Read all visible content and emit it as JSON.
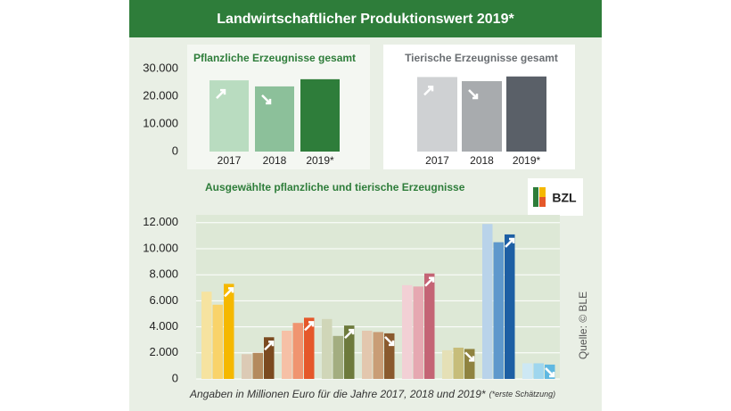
{
  "title": "Landwirtschaftlicher Produktionswert 2019*",
  "note": "Angaben in Millionen Euro für die Jahre 2017, 2018 und 2019*",
  "note_small": "(*erste Schätzung)",
  "source": "Quelle: © BLE",
  "logo": "BZL",
  "chart_data": [
    {
      "type": "bar",
      "title": "Pflanzliche Erzeugnisse gesamt",
      "categories": [
        "2017",
        "2018",
        "2019*"
      ],
      "values": [
        25800,
        23600,
        26200
      ],
      "colors": [
        "#b9dcc0",
        "#8cc09a",
        "#2e7d3a"
      ],
      "ylim": [
        0,
        31000
      ],
      "yticks": [
        0,
        {
          "value": 10000,
          "label": "10.000"
        },
        {
          "value": 20000,
          "label": "20.000"
        },
        {
          "value": 30000,
          "label": "30.000"
        }
      ]
    },
    {
      "type": "bar",
      "title": "Tierische Erzeugnisse gesamt",
      "categories": [
        "2017",
        "2018",
        "2019*"
      ],
      "values": [
        27000,
        25500,
        27200
      ],
      "colors": [
        "#cfd1d3",
        "#a8abae",
        "#5a6068"
      ],
      "ylim": [
        0,
        31000
      ]
    },
    {
      "type": "groupedbar",
      "title": "Ausgewählte pflanzliche und tierische Erzeugnisse",
      "categories": [
        null,
        null,
        null,
        null,
        null,
        null,
        null,
        null,
        null
      ],
      "groups": [
        {
          "values": [
            6700,
            5700,
            7300
          ],
          "colors": [
            "#f6e3a0",
            "#f9d36a",
            "#f5b800"
          ]
        },
        {
          "values": [
            1900,
            2000,
            3200
          ],
          "colors": [
            "#dccab5",
            "#b48a5e",
            "#7b4a20"
          ]
        },
        {
          "values": [
            3700,
            4300,
            4700
          ],
          "colors": [
            "#f6c0a6",
            "#f09470",
            "#e5582a"
          ]
        },
        {
          "values": [
            4600,
            3300,
            4100
          ],
          "colors": [
            "#d0d6b8",
            "#a3ad80",
            "#6d7a3c"
          ]
        },
        {
          "values": [
            3700,
            3600,
            3500
          ],
          "colors": [
            "#e3c7ae",
            "#c99d76",
            "#8a5a2e"
          ]
        },
        {
          "values": [
            7200,
            7100,
            8100
          ],
          "colors": [
            "#f2d0d5",
            "#e6a8b1",
            "#c46475"
          ]
        },
        {
          "values": [
            2200,
            2400,
            2300
          ],
          "colors": [
            "#e5e0b6",
            "#c7bd7a",
            "#8f8340"
          ]
        },
        {
          "values": [
            11900,
            10500,
            11100
          ],
          "colors": [
            "#b9d3ea",
            "#5e98cc",
            "#1d5fa4"
          ]
        },
        {
          "values": [
            1200,
            1200,
            1100
          ],
          "colors": [
            "#cde8f4",
            "#9fd6ee",
            "#5fb8e1"
          ]
        }
      ],
      "ylim": [
        0,
        12600
      ],
      "yticks": [
        0,
        {
          "value": 2000,
          "label": "2.000"
        },
        {
          "value": 4000,
          "label": "4.000"
        },
        {
          "value": 6000,
          "label": "6.000"
        },
        {
          "value": 8000,
          "label": "8.000"
        },
        {
          "value": 10000,
          "label": "10.000"
        },
        {
          "value": 12000,
          "label": "12.000"
        }
      ],
      "grid": true
    }
  ]
}
